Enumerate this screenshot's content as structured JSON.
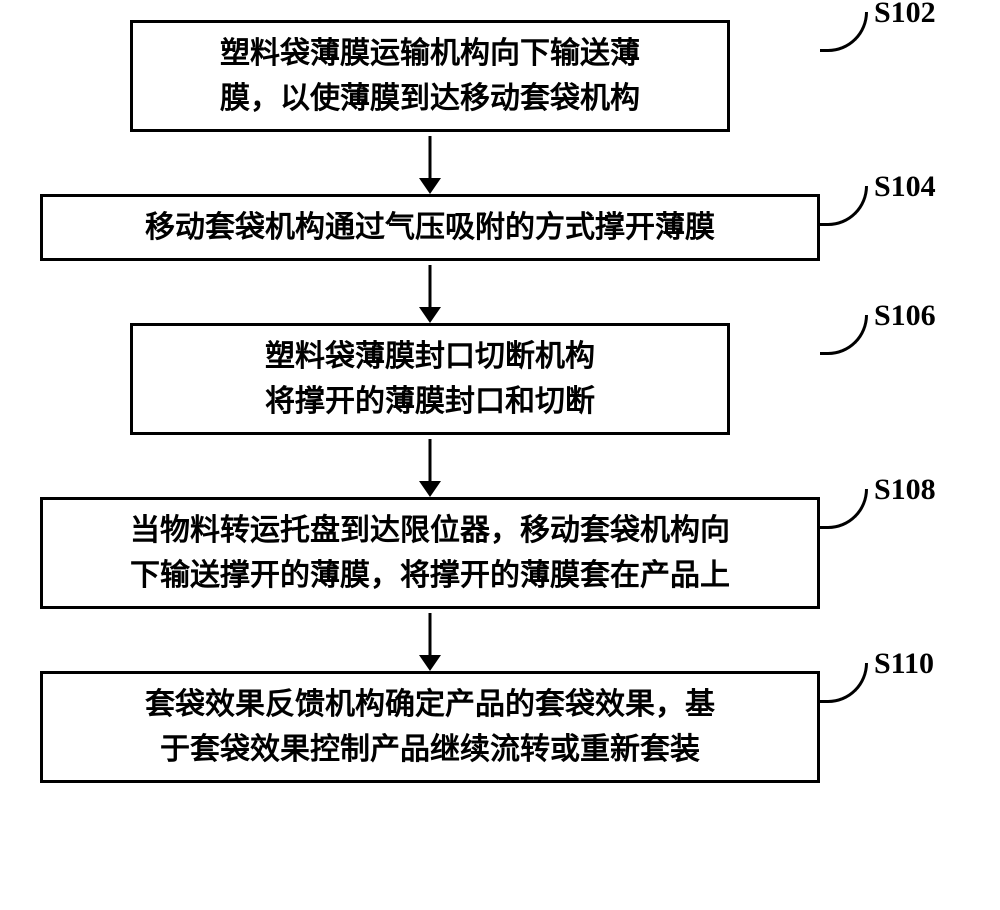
{
  "flowchart": {
    "type": "flowchart",
    "direction": "top-to-bottom",
    "background_color": "#ffffff",
    "border_color": "#000000",
    "border_width": 3,
    "text_color": "#000000",
    "font_family": "SimSun",
    "font_size_pt": 22,
    "font_weight": "bold",
    "arrow": {
      "shaft_length": 42,
      "shaft_width": 3,
      "head_width": 22,
      "head_height": 16,
      "color": "#000000"
    },
    "label_connector": {
      "stroke": "#000000",
      "stroke_width": 3,
      "radius": 48
    },
    "steps": [
      {
        "id": "S102",
        "box_variant": "narrow",
        "lines": [
          "塑料袋薄膜运输机构向下输送薄",
          "膜，以使薄膜到达移动套袋机构"
        ]
      },
      {
        "id": "S104",
        "box_variant": "wide",
        "lines": [
          "移动套袋机构通过气压吸附的方式撑开薄膜"
        ]
      },
      {
        "id": "S106",
        "box_variant": "mid",
        "lines": [
          "塑料袋薄膜封口切断机构",
          "将撑开的薄膜封口和切断"
        ]
      },
      {
        "id": "S108",
        "box_variant": "wide",
        "lines": [
          "当物料转运托盘到达限位器，移动套袋机构向",
          "下输送撑开的薄膜，将撑开的薄膜套在产品上"
        ]
      },
      {
        "id": "S110",
        "box_variant": "wide",
        "lines": [
          "套袋效果反馈机构确定产品的套袋效果，基",
          "于套袋效果控制产品继续流转或重新套装"
        ]
      }
    ]
  }
}
